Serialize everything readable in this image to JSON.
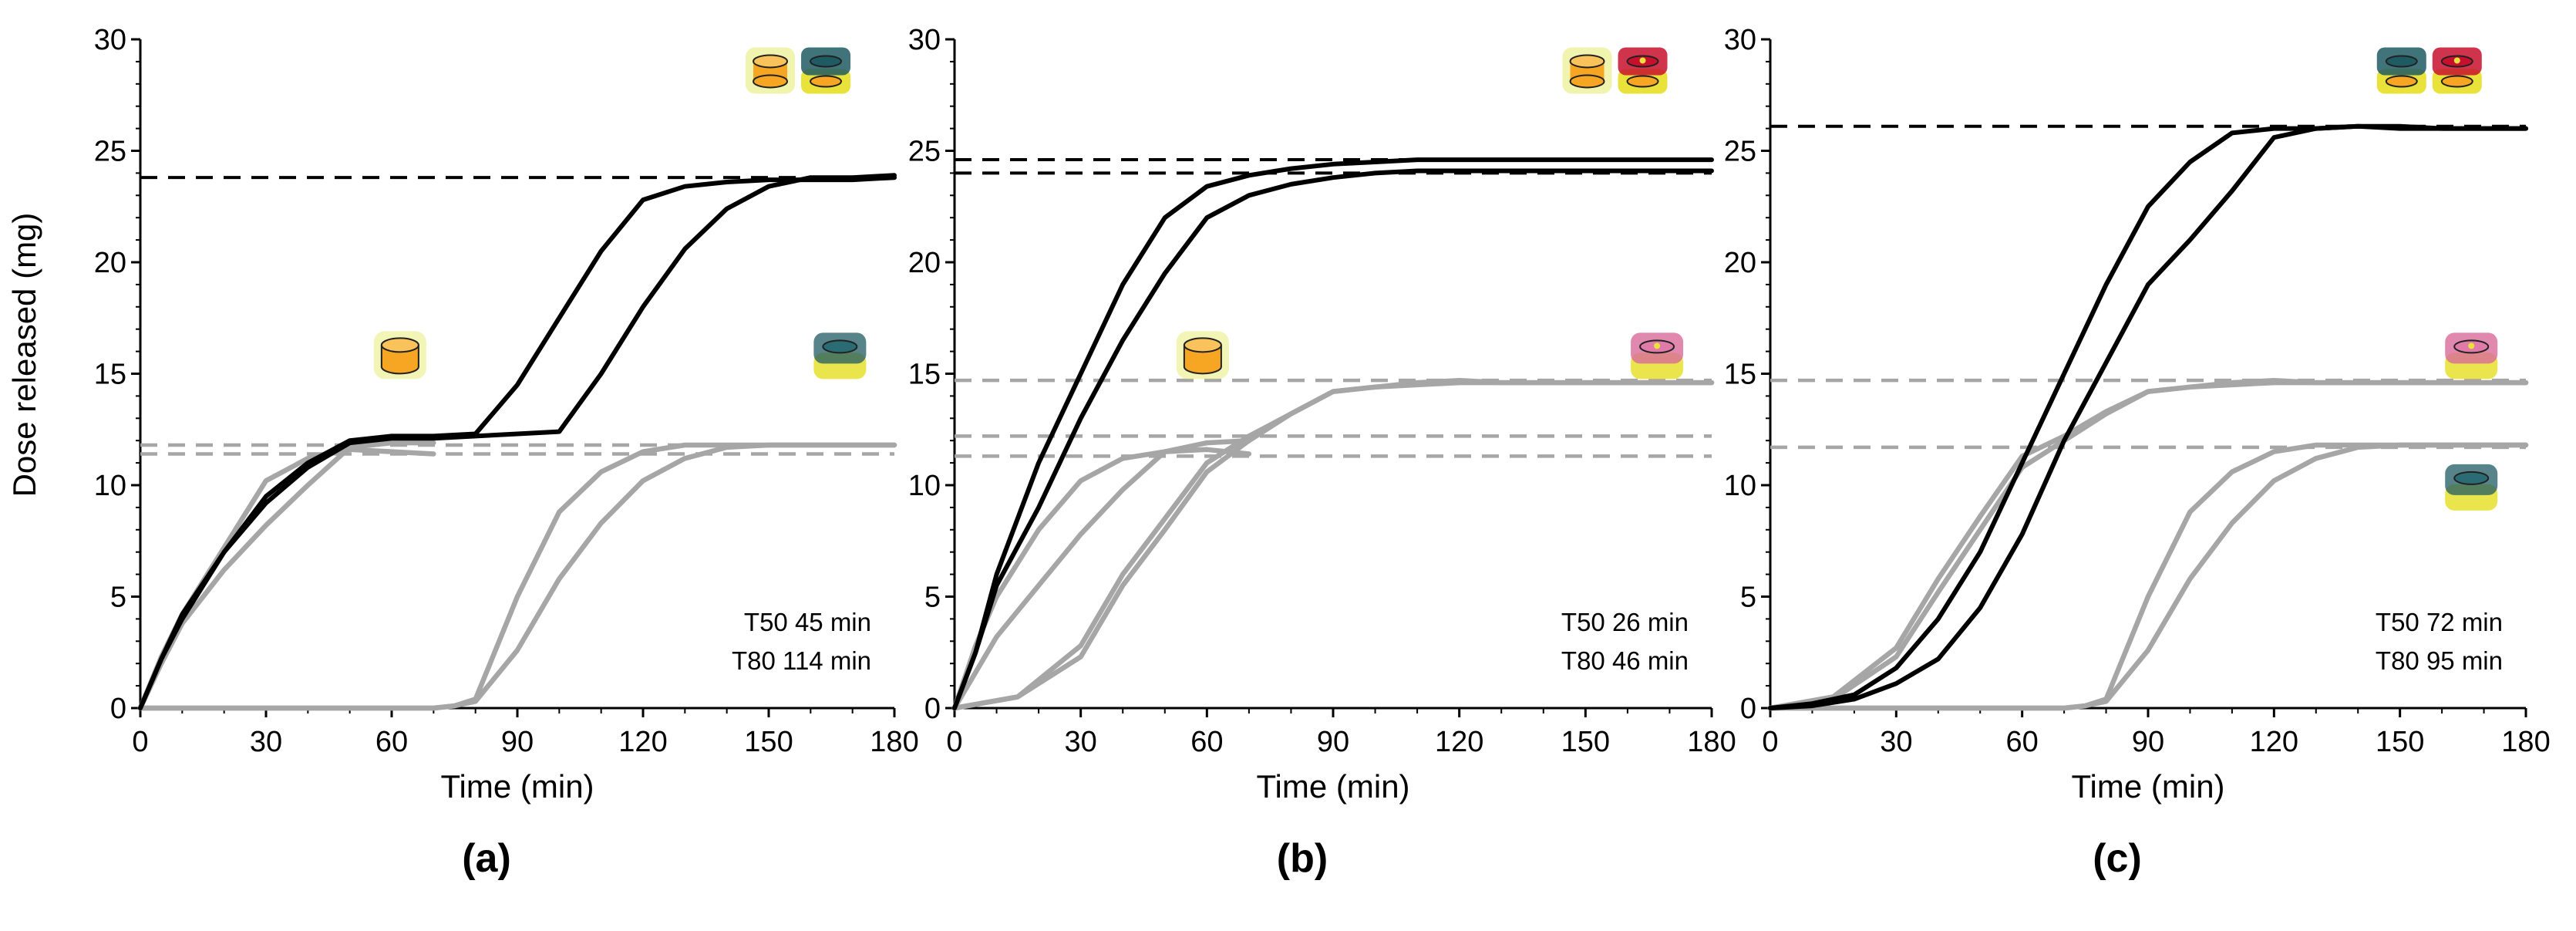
{
  "ylabel": "Dose released (mg)",
  "colors": {
    "black": "#000000",
    "grey": "#a6a6a6",
    "grey_dash": "#a6a6a6",
    "black_dash": "#000000",
    "orange": "#f6a623",
    "yellow": "#e8e23a",
    "teal": "#1f5b63",
    "red": "#c8102e",
    "pink": "#d96a9a"
  },
  "chart_data": [
    {
      "type": "line",
      "panel": "(a)",
      "xlabel": "Time (min)",
      "ylabel": "Dose released (mg)",
      "xlim": [
        0,
        180
      ],
      "ylim": [
        0,
        30
      ],
      "xticks": [
        "0",
        "30",
        "60",
        "90",
        "120",
        "150",
        "180"
      ],
      "yticks": [
        "0",
        "5",
        "10",
        "15",
        "20",
        "25",
        "30"
      ],
      "annotation": [
        "T50   45 min",
        "T80 114 min"
      ],
      "icons": [
        {
          "name": "orange-capsule-icon",
          "kind": "orange",
          "near": "grey-plateau"
        },
        {
          "name": "teal-capsule-icon",
          "kind": "teal",
          "near": "grey-plateau-right"
        },
        {
          "name": "combined-capsule-icon",
          "kind": "orange+teal",
          "near": "top-right"
        }
      ],
      "hlines": [
        {
          "y": 23.8,
          "color": "black"
        },
        {
          "y": 11.8,
          "color": "grey"
        },
        {
          "y": 11.4,
          "color": "grey"
        }
      ],
      "series": [
        {
          "name": "combined-1",
          "color": "black",
          "x": [
            0,
            5,
            10,
            20,
            30,
            40,
            50,
            60,
            70,
            80,
            90,
            100,
            110,
            120,
            130,
            140,
            150,
            160,
            170,
            180
          ],
          "y": [
            0,
            2.2,
            4.2,
            7,
            9.5,
            11,
            12,
            12.2,
            12.2,
            12.3,
            14.5,
            17.5,
            20.5,
            22.8,
            23.4,
            23.6,
            23.7,
            23.7,
            23.7,
            23.8
          ]
        },
        {
          "name": "combined-2",
          "color": "black",
          "x": [
            0,
            5,
            10,
            20,
            30,
            40,
            50,
            60,
            70,
            80,
            90,
            100,
            110,
            120,
            130,
            140,
            150,
            160,
            170,
            180
          ],
          "y": [
            0,
            2.2,
            4,
            7,
            9.2,
            10.8,
            11.9,
            12.1,
            12.1,
            12.2,
            12.3,
            12.4,
            15,
            18,
            20.6,
            22.4,
            23.4,
            23.8,
            23.8,
            23.9
          ]
        },
        {
          "name": "orange-1",
          "color": "grey",
          "x": [
            0,
            5,
            10,
            20,
            30,
            40,
            50,
            60,
            70
          ],
          "y": [
            0,
            2.3,
            4.2,
            7.2,
            10.2,
            11.2,
            11.6,
            11.5,
            11.4
          ]
        },
        {
          "name": "orange-2",
          "color": "grey",
          "x": [
            0,
            5,
            10,
            20,
            30,
            40,
            50,
            60,
            70
          ],
          "y": [
            0,
            2,
            3.8,
            6.2,
            8.2,
            10,
            11.7,
            11.9,
            11.9
          ]
        },
        {
          "name": "teal-1",
          "color": "grey",
          "x": [
            0,
            70,
            75,
            80,
            90,
            100,
            110,
            120,
            130,
            140,
            150,
            160,
            170,
            180
          ],
          "y": [
            0,
            0,
            0.1,
            0.4,
            5,
            8.8,
            10.6,
            11.5,
            11.8,
            11.8,
            11.8,
            11.8,
            11.8,
            11.8
          ]
        },
        {
          "name": "teal-2",
          "color": "grey",
          "x": [
            0,
            70,
            75,
            80,
            90,
            100,
            110,
            120,
            130,
            140,
            150,
            160,
            170,
            180
          ],
          "y": [
            0,
            0,
            0.1,
            0.3,
            2.6,
            5.8,
            8.3,
            10.2,
            11.2,
            11.7,
            11.8,
            11.8,
            11.8,
            11.8
          ]
        }
      ]
    },
    {
      "type": "line",
      "panel": "(b)",
      "xlabel": "Time (min)",
      "ylabel": "",
      "xlim": [
        0,
        180
      ],
      "ylim": [
        0,
        30
      ],
      "xticks": [
        "0",
        "30",
        "60",
        "90",
        "120",
        "150",
        "180"
      ],
      "yticks": [
        "0",
        "5",
        "10",
        "15",
        "20",
        "25",
        "30"
      ],
      "annotation": [
        "T50 26 min",
        "T80 46 min"
      ],
      "icons": [
        {
          "name": "orange-capsule-icon",
          "kind": "orange",
          "near": "grey-plateau"
        },
        {
          "name": "pink-capsule-icon",
          "kind": "pink",
          "near": "grey-plateau-right"
        },
        {
          "name": "combined-capsule-icon",
          "kind": "orange+red",
          "near": "top-right"
        }
      ],
      "hlines": [
        {
          "y": 24.6,
          "color": "black"
        },
        {
          "y": 24.0,
          "color": "black"
        },
        {
          "y": 14.7,
          "color": "grey"
        },
        {
          "y": 12.2,
          "color": "grey"
        },
        {
          "y": 11.3,
          "color": "grey"
        }
      ],
      "series": [
        {
          "name": "combined-1",
          "color": "black",
          "x": [
            0,
            5,
            10,
            20,
            30,
            40,
            50,
            60,
            70,
            80,
            90,
            100,
            110,
            120,
            130,
            140,
            150,
            160,
            170,
            180
          ],
          "y": [
            0,
            2.5,
            6,
            11,
            15,
            19,
            22,
            23.4,
            23.9,
            24.2,
            24.4,
            24.5,
            24.6,
            24.6,
            24.6,
            24.6,
            24.6,
            24.6,
            24.6,
            24.6
          ]
        },
        {
          "name": "combined-2",
          "color": "black",
          "x": [
            0,
            5,
            10,
            20,
            30,
            40,
            50,
            60,
            70,
            80,
            90,
            100,
            110,
            120,
            130,
            140,
            150,
            160,
            170,
            180
          ],
          "y": [
            0,
            2.5,
            5.5,
            9,
            13,
            16.5,
            19.5,
            22,
            23,
            23.5,
            23.8,
            24,
            24.1,
            24.1,
            24.1,
            24.1,
            24.1,
            24.1,
            24.1,
            24.1
          ]
        },
        {
          "name": "orange-1",
          "color": "grey",
          "x": [
            0,
            5,
            10,
            20,
            30,
            40,
            50,
            60,
            70
          ],
          "y": [
            0,
            2.8,
            5,
            8,
            10.2,
            11.2,
            11.5,
            11.6,
            11.4
          ]
        },
        {
          "name": "orange-2",
          "color": "grey",
          "x": [
            0,
            10,
            20,
            30,
            40,
            50,
            60,
            70
          ],
          "y": [
            0,
            3.2,
            5.5,
            7.8,
            9.8,
            11.5,
            11.9,
            12
          ]
        },
        {
          "name": "pink-1",
          "color": "grey",
          "x": [
            0,
            15,
            30,
            40,
            50,
            60,
            70,
            80,
            90,
            100,
            110,
            120,
            130,
            140,
            150,
            160,
            170,
            180
          ],
          "y": [
            0,
            0.5,
            2.8,
            6,
            8.5,
            11,
            12.2,
            13.2,
            14.2,
            14.4,
            14.5,
            14.6,
            14.6,
            14.6,
            14.6,
            14.6,
            14.6,
            14.6
          ]
        },
        {
          "name": "pink-2",
          "color": "grey",
          "x": [
            0,
            15,
            30,
            40,
            50,
            60,
            70,
            80,
            90,
            100,
            110,
            120,
            130,
            140,
            150,
            160,
            170,
            180
          ],
          "y": [
            0,
            0.5,
            2.3,
            5.5,
            8,
            10.6,
            12.0,
            13.2,
            14.2,
            14.4,
            14.6,
            14.7,
            14.6,
            14.6,
            14.6,
            14.6,
            14.6,
            14.6
          ]
        }
      ]
    },
    {
      "type": "line",
      "panel": "(c)",
      "xlabel": "Time (min)",
      "ylabel": "",
      "xlim": [
        0,
        180
      ],
      "ylim": [
        0,
        30
      ],
      "xticks": [
        "0",
        "30",
        "60",
        "90",
        "120",
        "150",
        "180"
      ],
      "yticks": [
        "0",
        "5",
        "10",
        "15",
        "20",
        "25",
        "30"
      ],
      "annotation": [
        "T50 72 min",
        "T80 95 min"
      ],
      "icons": [
        {
          "name": "pink-capsule-icon",
          "kind": "pink",
          "near": "grey-plateau-right"
        },
        {
          "name": "teal-capsule-icon",
          "kind": "teal",
          "near": "lower-right"
        },
        {
          "name": "combined-capsule-icon",
          "kind": "teal+red",
          "near": "top-right"
        }
      ],
      "hlines": [
        {
          "y": 26.1,
          "color": "black"
        },
        {
          "y": 14.7,
          "color": "grey"
        },
        {
          "y": 11.7,
          "color": "grey"
        }
      ],
      "series": [
        {
          "name": "combined-1",
          "color": "black",
          "x": [
            0,
            10,
            20,
            30,
            40,
            50,
            60,
            70,
            80,
            90,
            100,
            110,
            120,
            130,
            140,
            150,
            160,
            170,
            180
          ],
          "y": [
            0,
            0.2,
            0.6,
            1.8,
            4,
            7,
            11,
            15,
            19,
            22.5,
            24.5,
            25.8,
            26,
            26,
            26.1,
            26,
            26,
            26,
            26
          ]
        },
        {
          "name": "combined-2",
          "color": "black",
          "x": [
            0,
            10,
            20,
            30,
            40,
            50,
            60,
            70,
            80,
            90,
            100,
            110,
            120,
            130,
            140,
            150,
            160,
            170,
            180
          ],
          "y": [
            0,
            0.1,
            0.4,
            1.1,
            2.2,
            4.5,
            7.8,
            12.0,
            15.5,
            19.0,
            21,
            23.2,
            25.6,
            26,
            26.1,
            26.1,
            26,
            26,
            26
          ]
        },
        {
          "name": "pink-1",
          "color": "grey",
          "x": [
            0,
            15,
            30,
            40,
            50,
            60,
            70,
            80,
            90,
            100,
            110,
            120,
            130,
            140,
            150,
            160,
            170,
            180
          ],
          "y": [
            0,
            0.5,
            2.7,
            5.8,
            8.6,
            11.3,
            12.2,
            13.3,
            14.2,
            14.4,
            14.5,
            14.6,
            14.6,
            14.6,
            14.6,
            14.6,
            14.6,
            14.6
          ]
        },
        {
          "name": "pink-2",
          "color": "grey",
          "x": [
            0,
            15,
            30,
            40,
            50,
            60,
            70,
            80,
            90,
            100,
            110,
            120,
            130,
            140,
            150,
            160,
            170,
            180
          ],
          "y": [
            0,
            0.4,
            2.3,
            5.2,
            8,
            10.8,
            12,
            13.2,
            14.2,
            14.4,
            14.6,
            14.7,
            14.6,
            14.6,
            14.6,
            14.6,
            14.6,
            14.6
          ]
        },
        {
          "name": "teal-1",
          "color": "grey",
          "x": [
            0,
            70,
            75,
            80,
            90,
            100,
            110,
            120,
            130,
            140,
            150,
            160,
            170,
            180
          ],
          "y": [
            0,
            0,
            0.1,
            0.4,
            5,
            8.8,
            10.6,
            11.5,
            11.8,
            11.8,
            11.8,
            11.8,
            11.8,
            11.8
          ]
        },
        {
          "name": "teal-2",
          "color": "grey",
          "x": [
            0,
            70,
            75,
            80,
            90,
            100,
            110,
            120,
            130,
            140,
            150,
            160,
            170,
            180
          ],
          "y": [
            0,
            0,
            0.1,
            0.3,
            2.6,
            5.8,
            8.3,
            10.2,
            11.2,
            11.7,
            11.8,
            11.8,
            11.8,
            11.8
          ]
        }
      ]
    }
  ]
}
